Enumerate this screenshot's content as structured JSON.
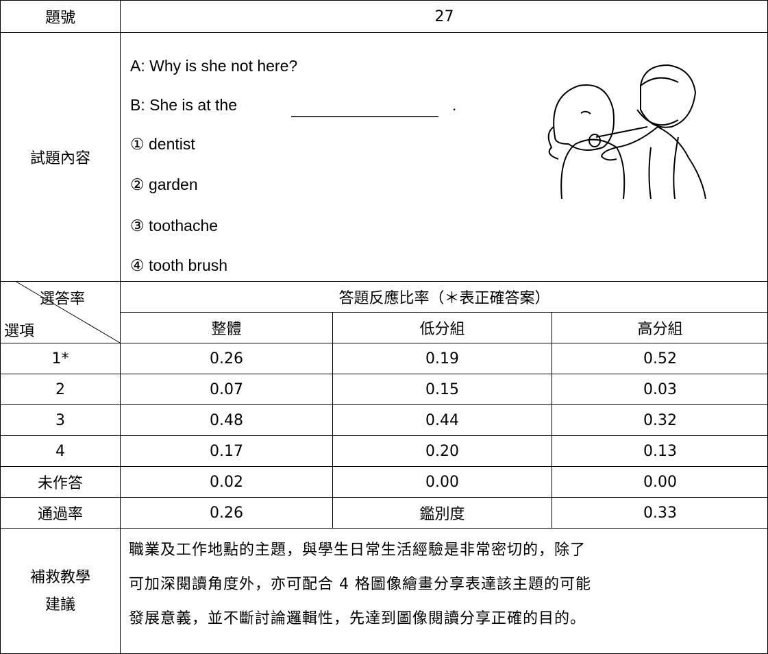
{
  "table": {
    "item_label": "題號",
    "item_number": "27",
    "content_label": "試題內容",
    "question": {
      "line_a": "A: Why is she not here?",
      "line_b_start": "B: She is at the",
      "line_b_end": "."
    },
    "options": [
      "① dentist",
      "② garden",
      "③ toothache",
      "④ tooth brush"
    ],
    "corner_top": "選答率",
    "corner_bottom": "選項",
    "group_header": "答題反應比率（＊表正確答案）",
    "columns": [
      "整體",
      "低分組",
      "高分組"
    ],
    "rows": [
      [
        "1*",
        "0.26",
        "0.19",
        "0.52"
      ],
      [
        "2",
        "0.07",
        "0.15",
        "0.03"
      ],
      [
        "3",
        "0.48",
        "0.44",
        "0.32"
      ],
      [
        "4",
        "0.17",
        "0.20",
        "0.13"
      ],
      [
        "未作答",
        "0.02",
        "0.00",
        "0.00"
      ]
    ],
    "summary": [
      "通過率",
      "0.26",
      "鑑別度",
      "0.33"
    ],
    "remedial_label": [
      "補救教學",
      "建議"
    ],
    "remedial_text": [
      "職業及工作地點的主題，與學生日常生活經驗是非常密切的，除了",
      "可加深閱讀角度外，亦可配合 4 格圖像繪畫分享表達該主題的可能",
      "發展意義，並不斷討論邏輯性，先達到圖像閱讀分享正確的目的。"
    ]
  }
}
